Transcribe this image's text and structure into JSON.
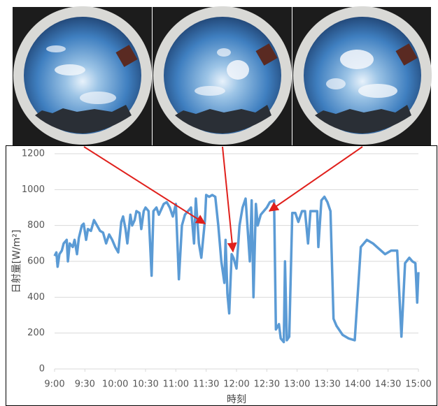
{
  "chart_data": {
    "type": "line",
    "x_label": "時刻",
    "y_label": "日射量[W/m²]",
    "color": "#5b9bd5",
    "grid": true,
    "xlim": [
      9,
      15
    ],
    "xticks": [
      {
        "value": 9,
        "label": "9:00"
      },
      {
        "value": 9.5,
        "label": "9:30"
      },
      {
        "value": 10,
        "label": "10:00"
      },
      {
        "value": 10.5,
        "label": "10:30"
      },
      {
        "value": 11,
        "label": "11:00"
      },
      {
        "value": 11.5,
        "label": "11:30"
      },
      {
        "value": 12,
        "label": "12:00"
      },
      {
        "value": 12.5,
        "label": "12:30"
      },
      {
        "value": 13,
        "label": "13:00"
      },
      {
        "value": 13.5,
        "label": "13:30"
      },
      {
        "value": 14,
        "label": "14:00"
      },
      {
        "value": 14.5,
        "label": "14:30"
      },
      {
        "value": 15,
        "label": "15:00"
      }
    ],
    "ylim": [
      0,
      1200
    ],
    "yticks": [
      0,
      200,
      400,
      600,
      800,
      1000,
      1200
    ],
    "x": [
      9.0,
      9.03,
      9.05,
      9.08,
      9.12,
      9.15,
      9.2,
      9.22,
      9.25,
      9.3,
      9.33,
      9.37,
      9.4,
      9.45,
      9.48,
      9.52,
      9.55,
      9.6,
      9.65,
      9.7,
      9.75,
      9.8,
      9.85,
      9.9,
      9.95,
      10.0,
      10.05,
      10.1,
      10.13,
      10.17,
      10.2,
      10.25,
      10.28,
      10.32,
      10.35,
      10.4,
      10.43,
      10.47,
      10.5,
      10.55,
      10.6,
      10.63,
      10.68,
      10.72,
      10.8,
      10.85,
      10.9,
      10.95,
      11.0,
      11.05,
      11.1,
      11.15,
      11.2,
      11.25,
      11.3,
      11.33,
      11.38,
      11.42,
      11.48,
      11.5,
      11.55,
      11.6,
      11.65,
      11.7,
      11.75,
      11.8,
      11.82,
      11.85,
      11.88,
      11.92,
      11.95,
      12.0,
      12.05,
      12.1,
      12.15,
      12.18,
      12.22,
      12.25,
      12.28,
      12.32,
      12.35,
      12.4,
      12.45,
      12.5,
      12.55,
      12.62,
      12.65,
      12.7,
      12.73,
      12.78,
      12.8,
      12.83,
      12.87,
      12.92,
      12.97,
      13.02,
      13.05,
      13.08,
      13.13,
      13.18,
      13.22,
      13.28,
      13.33,
      13.35,
      13.4,
      13.45,
      13.5,
      13.55,
      13.6,
      13.65,
      13.75,
      13.85,
      13.95,
      14.05,
      14.15,
      14.25,
      14.35,
      14.45,
      14.55,
      14.65,
      14.72,
      14.78,
      14.85,
      14.9,
      14.95,
      14.98,
      15.0
    ],
    "values": [
      630,
      650,
      570,
      640,
      660,
      700,
      720,
      600,
      700,
      680,
      720,
      640,
      730,
      800,
      810,
      720,
      780,
      770,
      830,
      800,
      770,
      760,
      700,
      750,
      720,
      680,
      650,
      820,
      850,
      780,
      700,
      860,
      800,
      830,
      880,
      870,
      780,
      880,
      900,
      880,
      520,
      880,
      900,
      860,
      920,
      930,
      900,
      850,
      920,
      500,
      800,
      860,
      880,
      900,
      700,
      950,
      700,
      620,
      830,
      970,
      960,
      970,
      960,
      800,
      600,
      480,
      720,
      420,
      310,
      640,
      620,
      560,
      800,
      900,
      950,
      800,
      600,
      940,
      400,
      920,
      800,
      860,
      880,
      900,
      930,
      940,
      220,
      250,
      170,
      150,
      600,
      160,
      180,
      870,
      870,
      820,
      850,
      880,
      880,
      700,
      880,
      880,
      880,
      680,
      940,
      960,
      930,
      880,
      280,
      240,
      190,
      170,
      160,
      680,
      720,
      700,
      670,
      640,
      660,
      660,
      180,
      590,
      620,
      600,
      590,
      370,
      540
    ]
  }
}
